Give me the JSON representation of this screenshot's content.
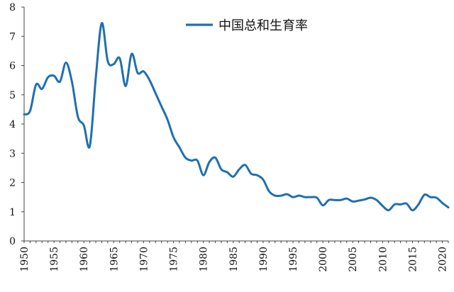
{
  "chart_data": {
    "type": "line",
    "title": "",
    "xlabel": "",
    "ylabel": "",
    "xlim": [
      1950,
      2021
    ],
    "ylim": [
      0,
      8
    ],
    "yticks": [
      0,
      1,
      2,
      3,
      4,
      5,
      6,
      7,
      8
    ],
    "xticks": [
      1950,
      1955,
      1960,
      1965,
      1970,
      1975,
      1980,
      1985,
      1990,
      1995,
      2000,
      2005,
      2010,
      2015,
      2020
    ],
    "grid": false,
    "legend_position": "top",
    "series": [
      {
        "name": "中国总和生育率",
        "color": "#1f6fb2",
        "x": [
          1950,
          1951,
          1952,
          1953,
          1954,
          1955,
          1956,
          1957,
          1958,
          1959,
          1960,
          1961,
          1962,
          1963,
          1964,
          1965,
          1966,
          1967,
          1968,
          1969,
          1970,
          1971,
          1972,
          1973,
          1974,
          1975,
          1976,
          1977,
          1978,
          1979,
          1980,
          1981,
          1982,
          1983,
          1984,
          1985,
          1986,
          1987,
          1988,
          1989,
          1990,
          1991,
          1992,
          1993,
          1994,
          1995,
          1996,
          1997,
          1998,
          1999,
          2000,
          2001,
          2002,
          2003,
          2004,
          2005,
          2006,
          2007,
          2008,
          2009,
          2010,
          2011,
          2012,
          2013,
          2014,
          2015,
          2016,
          2017,
          2018,
          2019,
          2020,
          2021
        ],
        "values": [
          4.33,
          4.45,
          5.35,
          5.2,
          5.6,
          5.65,
          5.45,
          6.1,
          5.45,
          4.25,
          3.95,
          3.25,
          5.6,
          7.45,
          6.15,
          6.05,
          6.25,
          5.3,
          6.4,
          5.75,
          5.8,
          5.5,
          5.05,
          4.6,
          4.15,
          3.55,
          3.2,
          2.85,
          2.75,
          2.75,
          2.25,
          2.7,
          2.85,
          2.45,
          2.35,
          2.2,
          2.45,
          2.6,
          2.3,
          2.25,
          2.1,
          1.7,
          1.55,
          1.55,
          1.6,
          1.5,
          1.55,
          1.5,
          1.5,
          1.48,
          1.22,
          1.4,
          1.4,
          1.4,
          1.45,
          1.35,
          1.38,
          1.42,
          1.48,
          1.4,
          1.2,
          1.05,
          1.25,
          1.25,
          1.28,
          1.05,
          1.25,
          1.58,
          1.5,
          1.48,
          1.3,
          1.15
        ]
      }
    ]
  }
}
